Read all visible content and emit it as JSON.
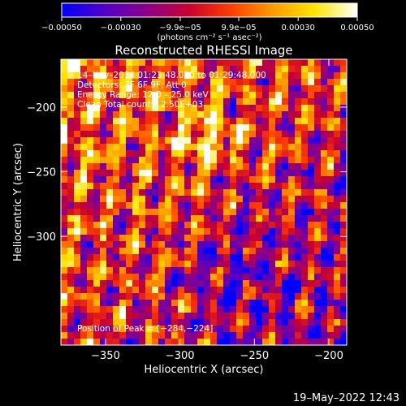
{
  "chart_data": {
    "type": "heatmap",
    "title": "Reconstructed RHESSI Image",
    "xlabel": "Heliocentric X (arcsec)",
    "ylabel": "Heliocentric Y (arcsec)",
    "xlim": [
      -380,
      -188
    ],
    "ylim": [
      -384,
      -163
    ],
    "x_ticks": [
      {
        "value": -350,
        "label": "−350"
      },
      {
        "value": -300,
        "label": "−300"
      },
      {
        "value": -250,
        "label": "−250"
      },
      {
        "value": -200,
        "label": "−200"
      }
    ],
    "y_ticks": [
      {
        "value": -200,
        "label": "−200"
      },
      {
        "value": -250,
        "label": "−250"
      },
      {
        "value": -300,
        "label": "−300"
      }
    ],
    "colorbar": {
      "range": [
        -0.0005,
        0.0005
      ],
      "ticks": [
        {
          "value": -0.0005,
          "label": "−0.00050"
        },
        {
          "value": -0.0003,
          "label": "−0.00030"
        },
        {
          "value": -9.9e-05,
          "label": "−9.9e−05"
        },
        {
          "value": 9.9e-05,
          "label": "9.9e−05"
        },
        {
          "value": 0.0003,
          "label": "0.00030"
        },
        {
          "value": 0.0005,
          "label": "0.00050"
        }
      ],
      "units": "(photons cm⁻² s⁻¹ asec⁻²)",
      "colors": [
        "#0000ff",
        "#5000c8",
        "#8a008a",
        "#c80030",
        "#ff3c00",
        "#ff9b00",
        "#ffe600",
        "#ffffff"
      ]
    },
    "annotations": {
      "time_range": "14–Nov–2014 01:23:48.000 to 01:29:48.000",
      "detectors": "Detectors: 3F 6F 9F, Att 0",
      "energy": "Energy Range: 12.0 – 25.0 keV",
      "method": "Clean    Total counts: 2.50E+03",
      "peak": "Position of Peak = [−284,−224]"
    },
    "peak": [
      -284,
      -224
    ],
    "grid": false
  },
  "footer": {
    "timestamp": "19–May–2022 12:43"
  }
}
